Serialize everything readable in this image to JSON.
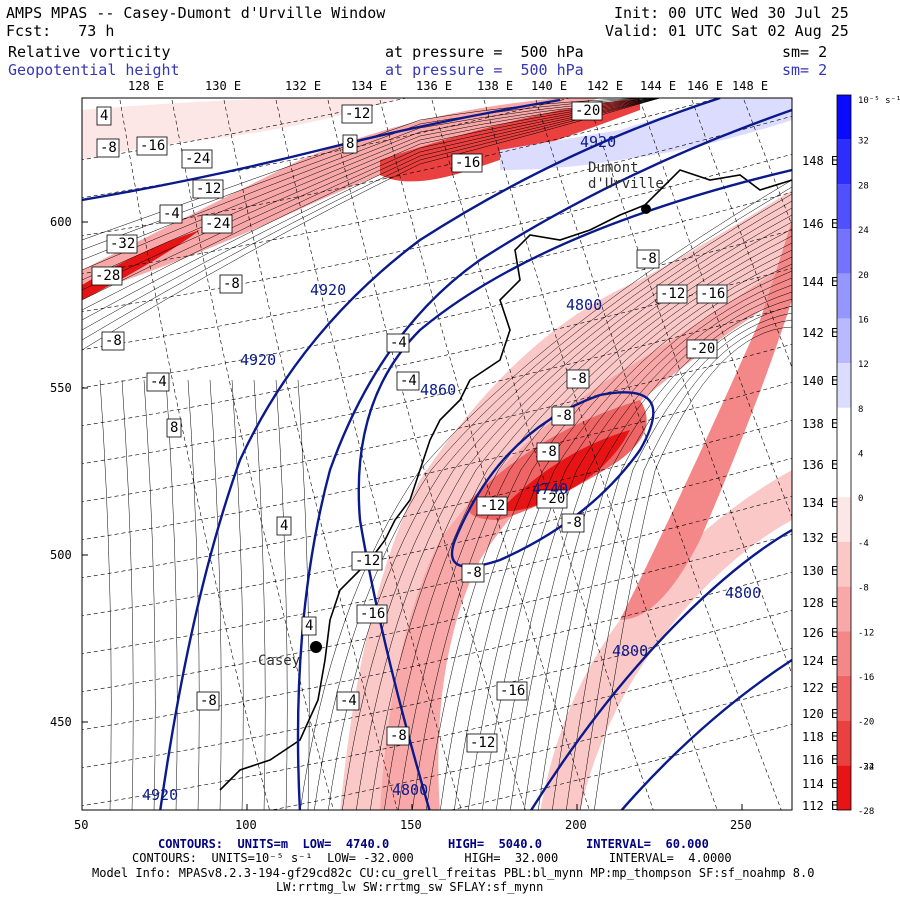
{
  "header": {
    "model_line": "AMPS MPAS -- Casey-Dumont d'Urville Window",
    "fcst_line": "Fcst:   73 h",
    "init_line": "Init: 00 UTC Wed 30 Jul 25",
    "valid_line": "Valid: 01 UTC Sat 02 Aug 25",
    "field1_name": "Relative vorticity",
    "field1_level": "at pressure =  500 hPa",
    "field1_sm": "sm= 2",
    "field2_name": "Geopotential height",
    "field2_level": "at pressure =  500 hPa",
    "field2_sm": "sm= 2"
  },
  "colors": {
    "blue_text": "#3535b8",
    "height_contour": "#0a1a8c",
    "positive_max": "#0000e6",
    "negative_max": "#e60000"
  },
  "chart_data": {
    "type": "contour-map",
    "x_axis_ticks": [
      "50",
      "100",
      "150",
      "200",
      "250"
    ],
    "y_axis_ticks": [
      "600",
      "550",
      "500",
      "450"
    ],
    "lon_labels_top": [
      "128 E",
      "130 E",
      "132 E",
      "134 E",
      "136 E",
      "138 E",
      "140 E",
      "142 E",
      "144 E",
      "146 E",
      "148 E"
    ],
    "lat_labels_right": [
      "148 E",
      "146 E",
      "144 E",
      "142 E",
      "140 E",
      "138 E",
      "136 E",
      "134 E",
      "132 E",
      "130 E",
      "128 E",
      "126 E",
      "124 E",
      "122 E",
      "120 E",
      "118 E",
      "116 E",
      "114 E",
      "112 E"
    ],
    "colorbar": {
      "unit_label": "10⁻⁵ s⁻¹",
      "tick_labels": [
        "32",
        "28",
        "24",
        "20",
        "16",
        "12",
        "8",
        "4",
        "0",
        "-4",
        "-8",
        "-12",
        "-16",
        "-20",
        "-24",
        "-28",
        "-32"
      ]
    },
    "height_contours": {
      "units": "m",
      "low": 4740.0,
      "high": 5040.0,
      "interval": 60.0,
      "labels": [
        "4920",
        "4920",
        "4920",
        "4860",
        "4800",
        "4800",
        "4800",
        "4800",
        "4920",
        "4740"
      ]
    },
    "vorticity_contours": {
      "units": "10^-5 s^-1",
      "low": -32.0,
      "high": 32.0,
      "interval": 4.0,
      "box_labels": [
        "4",
        "-8",
        "-16",
        "-24",
        "-12",
        "-32",
        "-8",
        "8",
        "-4",
        "-28",
        "-20",
        "-12",
        "-16",
        "4",
        "-8",
        "-24",
        "-8",
        "-20",
        "-12",
        "-4",
        "-12",
        "-16",
        "-16",
        "-12",
        "-8",
        "-4",
        "8",
        "-8",
        "-4",
        "4",
        "-4",
        "-8",
        "-12",
        "-16",
        "-20",
        "-8",
        "-8",
        "-8",
        "-8"
      ]
    },
    "stations": [
      "Dumont d'Urville",
      "Casey"
    ]
  },
  "footer": {
    "contours1_a": "CONTOURS:  UNITS=m  LOW=  4740.0",
    "contours1_b": "HIGH=  5040.0",
    "contours1_c": "INTERVAL=  60.000",
    "contours2": "CONTOURS:  UNITS=10⁻⁵ s⁻¹  LOW= -32.000       HIGH=  32.000       INTERVAL=  4.0000",
    "model_info": "Model Info: MPASv8.2.3-194-gf29cd82c CU:cu_grell_freitas PBL:bl_mynn MP:mp_thompson SF:sf_noahmp 8.0",
    "model_info2": "LW:rrtmg_lw SW:rrtmg_sw SFLAY:sf_mynn"
  }
}
